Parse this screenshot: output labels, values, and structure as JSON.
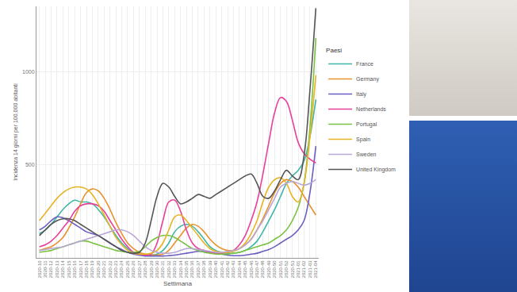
{
  "chart_data": {
    "type": "line",
    "x_label": "Settimana",
    "y_label": "Incidenza 14 giorni per 100.000 abitanti",
    "legend_title": "Paesi",
    "legend": "right",
    "grid": true,
    "ylim": [
      0,
      1350
    ],
    "yticks": [
      500,
      1000
    ],
    "categories": [
      "2020-10",
      "2020-11",
      "2020-12",
      "2020-13",
      "2020-14",
      "2020-15",
      "2020-16",
      "2020-17",
      "2020-18",
      "2020-19",
      "2020-20",
      "2020-21",
      "2020-22",
      "2020-23",
      "2020-24",
      "2020-25",
      "2020-26",
      "2020-27",
      "2020-28",
      "2020-29",
      "2020-30",
      "2020-31",
      "2020-32",
      "2020-33",
      "2020-34",
      "2020-35",
      "2020-36",
      "2020-37",
      "2020-38",
      "2020-39",
      "2020-40",
      "2020-41",
      "2020-42",
      "2020-43",
      "2020-44",
      "2020-45",
      "2020-46",
      "2020-47",
      "2020-48",
      "2020-49",
      "2020-50",
      "2020-51",
      "2020-52",
      "2020-53",
      "2021-01",
      "2021-02",
      "2021-03",
      "2021-04"
    ],
    "series": [
      {
        "name": "France",
        "color": "#3fb6a8",
        "values": [
          130,
          150,
          180,
          220,
          260,
          290,
          310,
          300,
          300,
          290,
          260,
          220,
          170,
          120,
          80,
          50,
          30,
          20,
          15,
          15,
          20,
          40,
          80,
          140,
          170,
          180,
          170,
          140,
          100,
          60,
          40,
          30,
          25,
          25,
          30,
          40,
          60,
          90,
          140,
          200,
          260,
          330,
          400,
          440,
          470,
          520,
          650,
          850
        ]
      },
      {
        "name": "Germany",
        "color": "#e8922e",
        "values": [
          40,
          50,
          60,
          80,
          110,
          160,
          220,
          290,
          350,
          370,
          360,
          320,
          260,
          190,
          130,
          80,
          50,
          30,
          20,
          15,
          15,
          20,
          40,
          80,
          120,
          160,
          180,
          170,
          140,
          100,
          70,
          50,
          40,
          40,
          50,
          70,
          100,
          150,
          210,
          280,
          350,
          400,
          420,
          410,
          380,
          330,
          280,
          230
        ]
      },
      {
        "name": "Italy",
        "color": "#6a5fc1",
        "values": [
          150,
          170,
          200,
          220,
          215,
          200,
          180,
          160,
          140,
          130,
          120,
          100,
          80,
          60,
          45,
          30,
          20,
          15,
          10,
          10,
          10,
          10,
          12,
          15,
          20,
          25,
          30,
          35,
          35,
          30,
          25,
          20,
          15,
          12,
          12,
          15,
          20,
          25,
          35,
          45,
          60,
          80,
          100,
          120,
          150,
          200,
          350,
          600
        ]
      },
      {
        "name": "Netherlands",
        "color": "#e8409a",
        "values": [
          60,
          70,
          90,
          120,
          160,
          200,
          250,
          280,
          290,
          290,
          280,
          250,
          200,
          150,
          100,
          60,
          30,
          20,
          15,
          20,
          80,
          200,
          300,
          310,
          250,
          150,
          80,
          50,
          40,
          30,
          25,
          25,
          30,
          40,
          70,
          120,
          200,
          300,
          450,
          620,
          780,
          860,
          840,
          740,
          620,
          560,
          530,
          510
        ]
      },
      {
        "name": "Portugal",
        "color": "#7cc242",
        "values": [
          30,
          35,
          40,
          50,
          60,
          70,
          80,
          90,
          90,
          80,
          70,
          60,
          50,
          40,
          35,
          30,
          30,
          35,
          60,
          90,
          110,
          120,
          120,
          110,
          90,
          70,
          50,
          40,
          30,
          25,
          20,
          20,
          20,
          25,
          30,
          40,
          50,
          60,
          70,
          80,
          100,
          120,
          150,
          200,
          270,
          400,
          700,
          1180
        ]
      },
      {
        "name": "Spain",
        "color": "#e6b422",
        "values": [
          200,
          240,
          280,
          320,
          350,
          370,
          380,
          380,
          370,
          340,
          290,
          230,
          170,
          110,
          70,
          40,
          25,
          20,
          20,
          25,
          40,
          80,
          150,
          220,
          230,
          200,
          160,
          120,
          80,
          50,
          35,
          30,
          30,
          35,
          50,
          80,
          130,
          200,
          300,
          380,
          420,
          430,
          400,
          330,
          300,
          400,
          650,
          980
        ]
      },
      {
        "name": "Sweden",
        "color": "#b9a7d6",
        "values": [
          40,
          45,
          50,
          55,
          60,
          70,
          80,
          90,
          100,
          110,
          120,
          130,
          140,
          150,
          150,
          140,
          120,
          90,
          60,
          40,
          30,
          25,
          25,
          30,
          40,
          50,
          50,
          45,
          40,
          35,
          30,
          30,
          35,
          40,
          50,
          70,
          100,
          150,
          200,
          260,
          320,
          380,
          400,
          410,
          400,
          390,
          400,
          420
        ]
      },
      {
        "name": "United Kingdom",
        "color": "#555555",
        "values": [
          120,
          150,
          180,
          200,
          210,
          210,
          200,
          180,
          160,
          140,
          120,
          100,
          80,
          60,
          40,
          30,
          25,
          30,
          80,
          200,
          330,
          400,
          380,
          330,
          290,
          300,
          320,
          340,
          330,
          320,
          340,
          360,
          380,
          400,
          420,
          440,
          450,
          400,
          330,
          320,
          360,
          420,
          470,
          440,
          420,
          550,
          900,
          1340
        ]
      }
    ]
  }
}
